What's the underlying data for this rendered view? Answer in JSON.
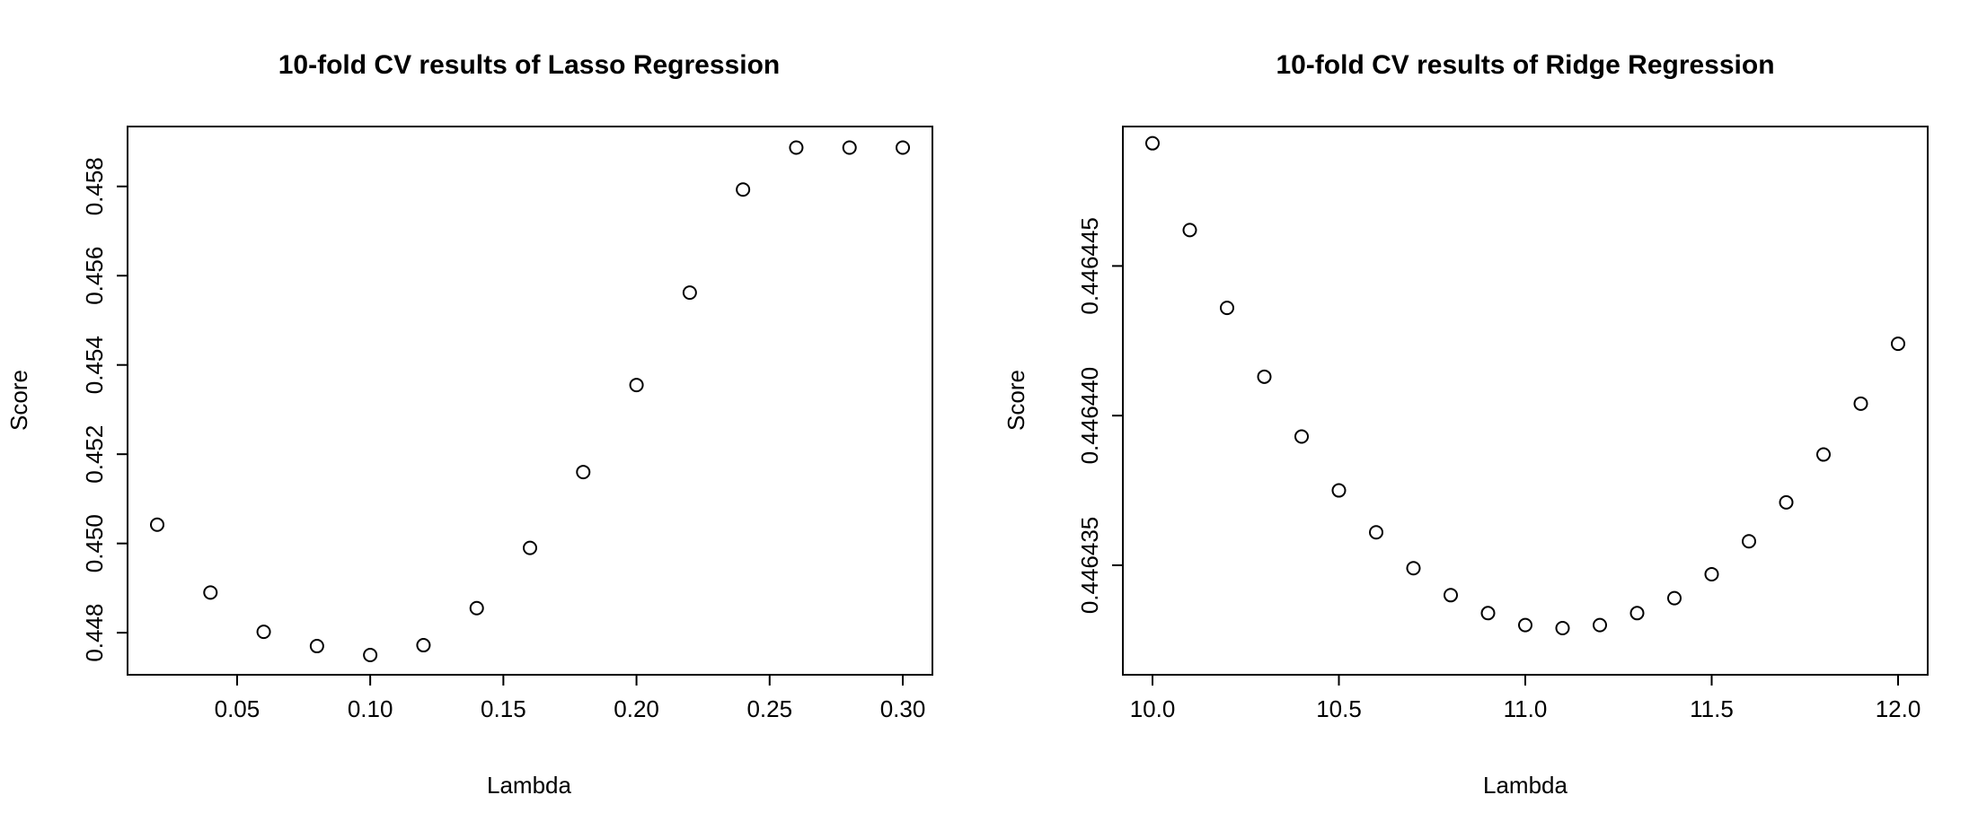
{
  "chart_data": [
    {
      "type": "scatter",
      "title": "10-fold CV results of Lasso Regression",
      "xlabel": "Lambda",
      "ylabel": "Score",
      "xlim": [
        0.02,
        0.3
      ],
      "ylim": [
        0.4475,
        0.4589
      ],
      "xticks": [
        0.05,
        0.1,
        0.15,
        0.2,
        0.25,
        0.3
      ],
      "xtick_labels": [
        "0.05",
        "0.10",
        "0.15",
        "0.20",
        "0.25",
        "0.30"
      ],
      "yticks": [
        0.448,
        0.45,
        0.452,
        0.454,
        0.456,
        0.458
      ],
      "ytick_labels": [
        "0.448",
        "0.450",
        "0.452",
        "0.454",
        "0.456",
        "0.458"
      ],
      "grid": false,
      "x": [
        0.02,
        0.04,
        0.06,
        0.08,
        0.1,
        0.12,
        0.14,
        0.16,
        0.18,
        0.2,
        0.22,
        0.24,
        0.26,
        0.28,
        0.3
      ],
      "y": [
        0.45042,
        0.4489,
        0.44802,
        0.4477,
        0.4475,
        0.44772,
        0.44855,
        0.4499,
        0.4516,
        0.45355,
        0.45562,
        0.45793,
        0.45887,
        0.45887,
        0.45887
      ]
    },
    {
      "type": "scatter",
      "title": "10-fold CV results of Ridge Regression",
      "xlabel": "Lambda",
      "ylabel": "Score",
      "xlim": [
        10.0,
        12.0
      ],
      "ylim": [
        0.446432,
        0.446449
      ],
      "xticks": [
        10.0,
        10.5,
        11.0,
        11.5,
        12.0
      ],
      "xtick_labels": [
        "10.0",
        "10.5",
        "11.0",
        "11.5",
        "12.0"
      ],
      "yticks": [
        0.446435,
        0.44644,
        0.446445
      ],
      "ytick_labels": [
        "0.446435",
        "0.446440",
        "0.446445"
      ],
      "grid": false,
      "x": [
        10.0,
        10.1,
        10.2,
        10.3,
        10.4,
        10.5,
        10.6,
        10.7,
        10.8,
        10.9,
        11.0,
        11.1,
        11.2,
        11.3,
        11.4,
        11.5,
        11.6,
        11.7,
        11.8,
        11.9,
        12.0
      ],
      "y": [
        0.4464491,
        0.4464462,
        0.4464436,
        0.4464413,
        0.4464393,
        0.4464375,
        0.4464361,
        0.4464349,
        0.446434,
        0.4464334,
        0.446433,
        0.4464329,
        0.446433,
        0.4464334,
        0.4464339,
        0.4464347,
        0.4464358,
        0.4464371,
        0.4464387,
        0.4464404,
        0.4464424
      ]
    }
  ]
}
